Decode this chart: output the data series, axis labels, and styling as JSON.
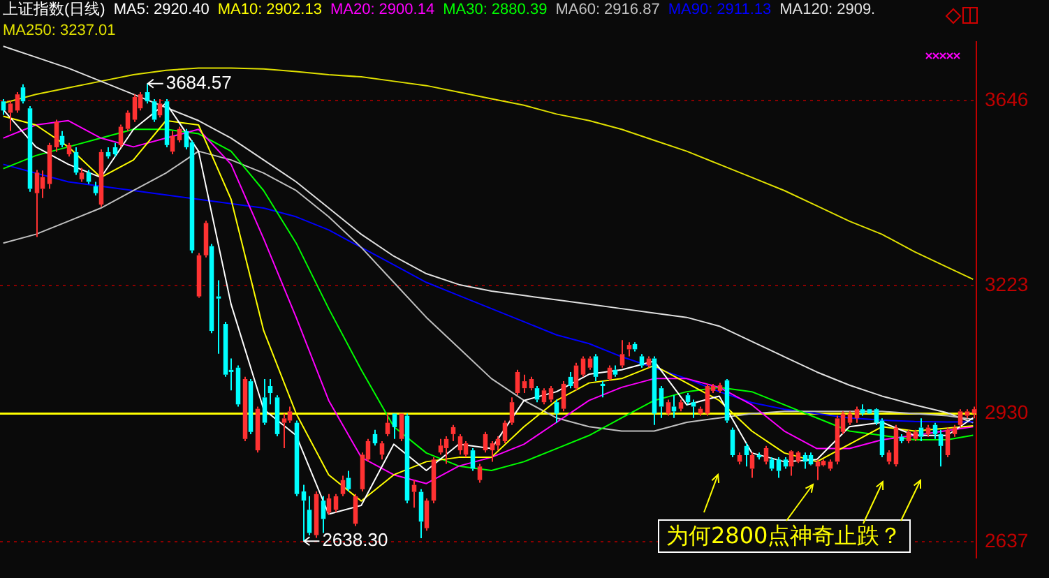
{
  "chart_data": {
    "type": "candlestick",
    "title": "上证指数(日线)",
    "legend": "top",
    "grid": "y",
    "tick_labels": "y",
    "ylim": [
      2600,
      3780
    ],
    "yticks": [
      3646,
      3223,
      2930,
      2637
    ],
    "categories": [
      null,
      null,
      null,
      null,
      null,
      null,
      null,
      null,
      null,
      null,
      null,
      null,
      null,
      null,
      null,
      null,
      null,
      null,
      null,
      null,
      null,
      null,
      null,
      null,
      null,
      null,
      null,
      null,
      null,
      null,
      null,
      null,
      null,
      null,
      null,
      null,
      null,
      null,
      null,
      null,
      null,
      null,
      null,
      null,
      null,
      null,
      null,
      null,
      null,
      null,
      null,
      null,
      null,
      null,
      null,
      null,
      null,
      null,
      null,
      null,
      null,
      null,
      null,
      null,
      null,
      null,
      null,
      null,
      null,
      null,
      null,
      null,
      null,
      null,
      null,
      null,
      null,
      null,
      null,
      null,
      null,
      null,
      null,
      null,
      null,
      null,
      null,
      null,
      null,
      null,
      null,
      null,
      null,
      null,
      null,
      null,
      null,
      null,
      null,
      null,
      null,
      null,
      null,
      null,
      null,
      null,
      null,
      null,
      null,
      null,
      null,
      null,
      null,
      null,
      null,
      null,
      null,
      null,
      null,
      null,
      null,
      null,
      null,
      null,
      null,
      null,
      null,
      null,
      null,
      null,
      null,
      null,
      null,
      null,
      null,
      null,
      null,
      null,
      null,
      null,
      null,
      null,
      null,
      null,
      null,
      null,
      null,
      null,
      null,
      null
    ],
    "ohlc": [
      [
        3644,
        3649,
        3613,
        3623
      ],
      [
        3618,
        3644,
        3576,
        3639
      ],
      [
        3623,
        3665,
        3618,
        3660
      ],
      [
        3676,
        3683,
        3639,
        3644
      ],
      [
        3628,
        3633,
        3437,
        3444
      ],
      [
        3434,
        3487,
        3334,
        3481
      ],
      [
        3444,
        3486,
        3423,
        3471
      ],
      [
        3455,
        3549,
        3444,
        3544
      ],
      [
        3539,
        3602,
        3528,
        3597
      ],
      [
        3565,
        3576,
        3539,
        3544
      ],
      [
        3523,
        3549,
        3518,
        3544
      ],
      [
        3528,
        3539,
        3476,
        3481
      ],
      [
        3466,
        3492,
        3460,
        3481
      ],
      [
        3481,
        3487,
        3455,
        3460
      ],
      [
        3450,
        3460,
        3429,
        3434
      ],
      [
        3408,
        3534,
        3403,
        3528
      ],
      [
        3528,
        3539,
        3513,
        3518
      ],
      [
        3539,
        3549,
        3518,
        3523
      ],
      [
        3544,
        3591,
        3539,
        3586
      ],
      [
        3581,
        3623,
        3576,
        3618
      ],
      [
        3602,
        3660,
        3597,
        3654
      ],
      [
        3628,
        3665,
        3623,
        3660
      ],
      [
        3665,
        3684.57,
        3639,
        3644
      ],
      [
        3644,
        3649,
        3597,
        3602
      ],
      [
        3612,
        3649,
        3607,
        3639
      ],
      [
        3644,
        3649,
        3539,
        3544
      ],
      [
        3529,
        3576,
        3523,
        3565
      ],
      [
        3555,
        3586,
        3550,
        3581
      ],
      [
        3576,
        3581,
        3534,
        3539
      ],
      [
        3550,
        3555,
        3297,
        3303
      ],
      [
        3198,
        3297,
        3195,
        3292
      ],
      [
        3292,
        3371,
        3287,
        3366
      ],
      [
        3313,
        3318,
        3114,
        3119
      ],
      [
        3198,
        3235,
        3067,
        3193
      ],
      [
        3135,
        3140,
        3014,
        3019
      ],
      [
        3030,
        3056,
        2983,
        3025
      ],
      [
        3035,
        3040,
        2946,
        2951
      ],
      [
        2872,
        3014,
        2867,
        3009
      ],
      [
        3004,
        3009,
        2883,
        2888
      ],
      [
        2846,
        2946,
        2841,
        2941
      ],
      [
        2967,
        3009,
        2904,
        2909
      ],
      [
        2993,
        3009,
        2951,
        2977
      ],
      [
        2967,
        2972,
        2878,
        2883
      ],
      [
        2909,
        2930,
        2851,
        2919
      ],
      [
        2914,
        2946,
        2909,
        2935
      ],
      [
        2909,
        2914,
        2741,
        2746
      ],
      [
        2752,
        2767,
        2638.3,
        2731
      ],
      [
        2710,
        2741,
        2652,
        2657
      ],
      [
        2652,
        2752,
        2646,
        2746
      ],
      [
        2731,
        2741,
        2657,
        2689
      ],
      [
        2704,
        2746,
        2699,
        2736
      ],
      [
        2710,
        2746,
        2704,
        2741
      ],
      [
        2746,
        2788,
        2741,
        2778
      ],
      [
        2783,
        2799,
        2752,
        2757
      ],
      [
        2678,
        2746,
        2673,
        2741
      ],
      [
        2757,
        2841,
        2752,
        2836
      ],
      [
        2825,
        2872,
        2820,
        2867
      ],
      [
        2883,
        2893,
        2857,
        2862
      ],
      [
        2836,
        2867,
        2825,
        2862
      ],
      [
        2883,
        2930,
        2878,
        2909
      ],
      [
        2930,
        2930,
        2872,
        2899
      ],
      [
        2872,
        2930,
        2867,
        2930
      ],
      [
        2925,
        2930,
        2725,
        2731
      ],
      [
        2751,
        2778,
        2715,
        2767
      ],
      [
        2751,
        2757,
        2645,
        2683
      ],
      [
        2668,
        2736,
        2662,
        2731
      ],
      [
        2731,
        2830,
        2725,
        2825
      ],
      [
        2841,
        2872,
        2836,
        2857
      ],
      [
        2851,
        2878,
        2815,
        2872
      ],
      [
        2883,
        2904,
        2867,
        2899
      ],
      [
        2846,
        2883,
        2836,
        2878
      ],
      [
        2836,
        2867,
        2830,
        2862
      ],
      [
        2846,
        2851,
        2799,
        2804
      ],
      [
        2778,
        2815,
        2772,
        2809
      ],
      [
        2846,
        2888,
        2841,
        2883
      ],
      [
        2846,
        2867,
        2820,
        2862
      ],
      [
        2857,
        2878,
        2846,
        2872
      ],
      [
        2867,
        2914,
        2862,
        2909
      ],
      [
        2909,
        2967,
        2904,
        2956
      ],
      [
        2977,
        3030,
        2972,
        3025
      ],
      [
        2988,
        3019,
        2977,
        3004
      ],
      [
        2988,
        3014,
        2983,
        3009
      ],
      [
        2988,
        2993,
        2956,
        2962
      ],
      [
        2956,
        2988,
        2951,
        2983
      ],
      [
        2962,
        2993,
        2956,
        2988
      ],
      [
        2956,
        2962,
        2909,
        2930
      ],
      [
        2941,
        3004,
        2935,
        2998
      ],
      [
        3014,
        3025,
        2988,
        2993
      ],
      [
        2988,
        3046,
        2983,
        3040
      ],
      [
        3019,
        3061,
        3014,
        3056
      ],
      [
        3035,
        3061,
        3030,
        3056
      ],
      [
        3061,
        3066,
        3004,
        3014
      ],
      [
        2998,
        3004,
        2967,
        2993
      ],
      [
        3009,
        3040,
        3004,
        3035
      ],
      [
        3030,
        3040,
        3014,
        3019
      ],
      [
        3040,
        3098,
        3035,
        3066
      ],
      [
        3077,
        3093,
        3061,
        3087
      ],
      [
        3089,
        3093,
        3072,
        3077
      ],
      [
        3061,
        3066,
        3035,
        3040
      ],
      [
        3040,
        3061,
        3035,
        3056
      ],
      [
        3056,
        3061,
        2904,
        2930
      ],
      [
        2988,
        2993,
        2920,
        2946
      ],
      [
        2930,
        2962,
        2925,
        2956
      ],
      [
        2946,
        2972,
        2920,
        2935
      ],
      [
        2941,
        2962,
        2935,
        2956
      ],
      [
        2972,
        2977,
        2951,
        2956
      ],
      [
        2956,
        2962,
        2920,
        2946
      ],
      [
        2930,
        2946,
        2925,
        2941
      ],
      [
        2930,
        2998,
        2925,
        2993
      ],
      [
        2982,
        2998,
        2977,
        2993
      ],
      [
        2982,
        3000,
        2977,
        2995
      ],
      [
        3006,
        3009,
        2909,
        2914
      ],
      [
        2893,
        2898,
        2830,
        2835
      ],
      [
        2820,
        2841,
        2814,
        2835
      ],
      [
        2856,
        2862,
        2809,
        2835
      ],
      [
        2804,
        2841,
        2783,
        2835
      ],
      [
        2835,
        2841,
        2825,
        2830
      ],
      [
        2820,
        2856,
        2814,
        2851
      ],
      [
        2825,
        2830,
        2799,
        2804
      ],
      [
        2825,
        2830,
        2783,
        2799
      ],
      [
        2825,
        2830,
        2804,
        2809
      ],
      [
        2809,
        2846,
        2788,
        2844
      ],
      [
        2820,
        2844,
        2817,
        2841
      ],
      [
        2835,
        2841,
        2804,
        2820
      ],
      [
        2835,
        2841,
        2812,
        2814
      ],
      [
        2809,
        2825,
        2778,
        2820
      ],
      [
        2812,
        2825,
        2809,
        2822
      ],
      [
        2804,
        2825,
        2799,
        2820
      ],
      [
        2820,
        2925,
        2814,
        2919
      ],
      [
        2888,
        2935,
        2883,
        2930
      ],
      [
        2909,
        2935,
        2904,
        2930
      ],
      [
        2919,
        2946,
        2909,
        2940
      ],
      [
        2940,
        2951,
        2925,
        2930
      ],
      [
        2940,
        2940,
        2930,
        2930
      ],
      [
        2940,
        2942,
        2904,
        2909
      ],
      [
        2914,
        2919,
        2830,
        2835
      ],
      [
        2820,
        2846,
        2814,
        2841
      ],
      [
        2814,
        2904,
        2809,
        2898
      ],
      [
        2877,
        2883,
        2862,
        2867
      ],
      [
        2867,
        2893,
        2862,
        2888
      ],
      [
        2872,
        2893,
        2867,
        2888
      ],
      [
        2898,
        2919,
        2867,
        2877
      ],
      [
        2883,
        2904,
        2877,
        2898
      ],
      [
        2904,
        2909,
        2872,
        2883
      ],
      [
        2883,
        2893,
        2809,
        2856
      ],
      [
        2835,
        2898,
        2830,
        2893
      ],
      [
        2883,
        2904,
        2877,
        2898
      ],
      [
        2904,
        2940,
        2899,
        2935
      ],
      [
        2925,
        2940,
        2919,
        2935
      ],
      [
        2930,
        2946,
        2919,
        2940
      ]
    ],
    "colors": [
      "#00ffff",
      "#ff3232",
      "#ff3232",
      "#00ffff",
      "#00ffff",
      "#ff3232",
      "#ff3232",
      "#ff3232",
      "#ff3232",
      "#00ffff",
      "#ff3232",
      "#00ffff",
      "#ff3232",
      "#00ffff",
      "#00ffff",
      "#ff3232",
      "#00ffff",
      "#00ffff",
      "#ff3232",
      "#ff3232",
      "#ff3232",
      "#ff3232",
      "#00ffff",
      "#00ffff",
      "#ff3232",
      "#00ffff",
      "#ff3232",
      "#ff3232",
      "#00ffff",
      "#00ffff",
      "#ff3232",
      "#ff3232",
      "#00ffff",
      "#00ffff",
      "#00ffff",
      "#00ffff",
      "#00ffff",
      "#ff3232",
      "#00ffff",
      "#ff3232",
      "#00ffff",
      "#00ffff",
      "#00ffff",
      "#ff3232",
      "#ff3232",
      "#00ffff",
      "#00ffff",
      "#00ffff",
      "#ff3232",
      "#00ffff",
      "#ff3232",
      "#ff3232",
      "#ff3232",
      "#00ffff",
      "#ff3232",
      "#ff3232",
      "#ff3232",
      "#00ffff",
      "#ff3232",
      "#ff3232",
      "#00ffff",
      "#ff3232",
      "#00ffff",
      "#ff3232",
      "#00ffff",
      "#ff3232",
      "#ff3232",
      "#ff3232",
      "#ff3232",
      "#ff3232",
      "#ff3232",
      "#ff3232",
      "#00ffff",
      "#ff3232",
      "#ff3232",
      "#ff3232",
      "#ff3232",
      "#ff3232",
      "#ff3232",
      "#ff3232",
      "#ff3232",
      "#ff3232",
      "#00ffff",
      "#ff3232",
      "#ff3232",
      "#00ffff",
      "#ff3232",
      "#00ffff",
      "#ff3232",
      "#ff3232",
      "#ff3232",
      "#00ffff",
      "#00ffff",
      "#ff3232",
      "#00ffff",
      "#ff3232",
      "#ff3232",
      "#00ffff",
      "#00ffff",
      "#ff3232",
      "#00ffff",
      "#00ffff",
      "#ff3232",
      "#00ffff",
      "#ff3232",
      "#00ffff",
      "#00ffff",
      "#ff3232",
      "#ff3232",
      "#ff3232",
      "#ff3232",
      "#00ffff",
      "#00ffff",
      "#ff3232",
      "#00ffff",
      "#ff3232",
      "#00ffff",
      "#ff3232",
      "#00ffff",
      "#00ffff",
      "#00ffff",
      "#ff3232",
      "#ff3232",
      "#00ffff",
      "#00ffff",
      "#ff3232",
      "#ff3232",
      "#ff3232",
      "#ff3232",
      "#ff3232",
      "#ff3232",
      "#ff3232",
      "#00ffff",
      "#00ffff",
      "#00ffff",
      "#00ffff",
      "#ff3232",
      "#ff3232",
      "#00ffff",
      "#ff3232",
      "#ff3232",
      "#00ffff",
      "#ff3232",
      "#00ffff",
      "#00ffff",
      "#ff3232",
      "#ff3232",
      "#ff3232",
      "#ff3232",
      "#ff3232"
    ],
    "series": [
      {
        "type": "line",
        "name": "MA5: 2920.40",
        "color": "#ffffff",
        "values": [
          3625,
          null,
          null,
          null,
          null,
          3540,
          null,
          null,
          null,
          null,
          3500,
          null,
          null,
          null,
          null,
          3470,
          null,
          null,
          null,
          null,
          3580,
          null,
          null,
          null,
          null,
          3640,
          null,
          null,
          null,
          null,
          3530,
          null,
          null,
          null,
          null,
          3180,
          null,
          null,
          null,
          null,
          2940,
          null,
          null,
          null,
          null,
          2880,
          null,
          null,
          null,
          null,
          2700,
          null,
          null,
          null,
          null,
          2720,
          null,
          null,
          null,
          null,
          2860,
          null,
          null,
          null,
          null,
          2800,
          null,
          null,
          null,
          null,
          2860,
          null,
          null,
          null,
          null,
          2850,
          null,
          null,
          null,
          null,
          2960,
          null,
          null,
          null,
          null,
          2980,
          null,
          null,
          null,
          null,
          3020,
          null,
          null,
          null,
          null,
          3030,
          null,
          null,
          null,
          null,
          3050,
          null,
          null,
          null,
          null,
          2950,
          null,
          null,
          null,
          null,
          2970,
          null,
          null,
          null,
          null,
          2840,
          null,
          null,
          null,
          null,
          2820,
          null,
          null,
          null,
          null,
          2825,
          null,
          null,
          null,
          null,
          2900,
          null,
          null,
          null,
          null,
          2910,
          null,
          null,
          null,
          null,
          2880,
          null,
          null,
          null,
          null,
          2880,
          null,
          null,
          null,
          2920.4
        ]
      },
      {
        "type": "line",
        "name": "MA10: 2902.13",
        "color": "#ffff00",
        "values": [
          3610,
          null,
          null,
          null,
          null,
          3590,
          null,
          null,
          null,
          null,
          3540,
          null,
          null,
          null,
          null,
          3470,
          null,
          null,
          null,
          null,
          3510,
          null,
          null,
          null,
          null,
          3600,
          null,
          null,
          null,
          null,
          3590,
          null,
          null,
          null,
          null,
          3420,
          null,
          null,
          null,
          null,
          3120,
          null,
          null,
          null,
          null,
          2930,
          null,
          null,
          null,
          null,
          2790,
          null,
          null,
          null,
          null,
          2730,
          null,
          null,
          null,
          null,
          2790,
          null,
          null,
          null,
          null,
          2820,
          null,
          null,
          null,
          null,
          2830,
          null,
          null,
          null,
          null,
          2830,
          null,
          null,
          null,
          null,
          2900,
          null,
          null,
          null,
          null,
          2960,
          null,
          null,
          null,
          null,
          3000,
          null,
          null,
          null,
          null,
          3010,
          null,
          null,
          null,
          null,
          3040,
          null,
          null,
          null,
          null,
          3000,
          null,
          null,
          null,
          null,
          2960,
          null,
          null,
          null,
          null,
          2890,
          null,
          null,
          null,
          null,
          2840,
          null,
          null,
          null,
          null,
          2820,
          null,
          null,
          null,
          null,
          2860,
          null,
          null,
          null,
          null,
          2900,
          null,
          null,
          null,
          null,
          2890,
          null,
          null,
          null,
          null,
          null,
          null,
          null,
          null,
          2902.13
        ]
      },
      {
        "type": "line",
        "name": "MA20: 2900.14",
        "color": "#ff00ff",
        "values": [
          3560,
          null,
          null,
          null,
          null,
          3590,
          null,
          null,
          null,
          null,
          3600,
          null,
          null,
          null,
          null,
          3560,
          null,
          null,
          null,
          null,
          3540,
          null,
          null,
          null,
          null,
          3560,
          null,
          null,
          null,
          null,
          3580,
          null,
          null,
          null,
          null,
          3500,
          null,
          null,
          null,
          null,
          3330,
          null,
          null,
          null,
          null,
          3150,
          null,
          null,
          null,
          null,
          2960,
          null,
          null,
          null,
          null,
          2830,
          null,
          null,
          null,
          null,
          2790,
          null,
          null,
          null,
          null,
          2770,
          null,
          null,
          null,
          null,
          2810,
          null,
          null,
          null,
          null,
          2830,
          null,
          null,
          null,
          null,
          2860,
          null,
          null,
          null,
          null,
          2910,
          null,
          null,
          null,
          null,
          2960,
          null,
          null,
          null,
          null,
          2990,
          null,
          null,
          null,
          null,
          3010,
          null,
          null,
          null,
          null,
          3010,
          null,
          null,
          null,
          null,
          2990,
          null,
          null,
          null,
          null,
          2950,
          null,
          null,
          null,
          null,
          2890,
          null,
          null,
          null,
          null,
          2850,
          null,
          null,
          null,
          null,
          2850,
          null,
          null,
          null,
          null,
          2870,
          null,
          null,
          null,
          null,
          2880,
          null,
          null,
          null,
          null,
          null,
          null,
          null,
          null,
          2900.14
        ]
      },
      {
        "type": "line",
        "name": "MA30: 2880.39",
        "color": "#00ff00",
        "values": [
          3490,
          null,
          null,
          null,
          null,
          3520,
          null,
          null,
          null,
          null,
          3540,
          null,
          null,
          null,
          null,
          3560,
          null,
          null,
          null,
          null,
          3580,
          null,
          null,
          null,
          null,
          3580,
          null,
          null,
          null,
          null,
          3570,
          null,
          null,
          null,
          null,
          3530,
          null,
          null,
          null,
          null,
          3440,
          null,
          null,
          null,
          null,
          3320,
          null,
          null,
          null,
          null,
          3170,
          null,
          null,
          null,
          null,
          3030,
          null,
          null,
          null,
          null,
          2900,
          null,
          null,
          null,
          null,
          2840,
          null,
          null,
          null,
          null,
          2810,
          null,
          null,
          null,
          null,
          2800,
          null,
          null,
          null,
          null,
          2820,
          null,
          null,
          null,
          null,
          2850,
          null,
          null,
          null,
          null,
          2880,
          null,
          null,
          null,
          null,
          2920,
          null,
          null,
          null,
          null,
          2960,
          null,
          null,
          null,
          null,
          2980,
          null,
          null,
          null,
          null,
          2990,
          null,
          null,
          null,
          null,
          2980,
          null,
          null,
          null,
          null,
          2950,
          null,
          null,
          null,
          null,
          2920,
          null,
          null,
          null,
          null,
          2890,
          null,
          null,
          null,
          null,
          2880,
          null,
          null,
          null,
          null,
          2870,
          null,
          null,
          null,
          null,
          2870,
          null,
          null,
          null,
          2880.39
        ]
      },
      {
        "type": "line",
        "name": "MA60: 2916.87",
        "color": "#c0c0c0",
        "values": [
          3320,
          null,
          null,
          null,
          null,
          3340,
          null,
          null,
          null,
          null,
          3370,
          null,
          null,
          null,
          null,
          3400,
          null,
          null,
          null,
          null,
          3440,
          null,
          null,
          null,
          null,
          3480,
          null,
          null,
          null,
          null,
          3530,
          null,
          null,
          null,
          null,
          3510,
          null,
          null,
          null,
          null,
          3480,
          null,
          null,
          null,
          null,
          3440,
          null,
          null,
          null,
          null,
          3380,
          null,
          null,
          null,
          null,
          3310,
          null,
          null,
          null,
          null,
          3230,
          null,
          null,
          null,
          null,
          3150,
          null,
          null,
          null,
          null,
          3080,
          null,
          null,
          null,
          null,
          3010,
          null,
          null,
          null,
          null,
          2960,
          null,
          null,
          null,
          null,
          2920,
          null,
          null,
          null,
          null,
          2900,
          null,
          null,
          null,
          null,
          2890,
          null,
          null,
          null,
          null,
          2890,
          null,
          null,
          null,
          null,
          2910,
          null,
          null,
          null,
          null,
          2920,
          null,
          null,
          null,
          null,
          2930,
          null,
          null,
          null,
          null,
          2935,
          null,
          null,
          null,
          null,
          2935,
          null,
          null,
          null,
          null,
          2935,
          null,
          null,
          null,
          null,
          2935,
          null,
          null,
          null,
          null,
          2930,
          null,
          null,
          null,
          null,
          2925,
          null,
          null,
          null,
          2916.87
        ]
      },
      {
        "type": "line",
        "name": "MA90: 2911.13",
        "color": "#0000ff",
        "values": [
          3500,
          null,
          null,
          null,
          null,
          3480,
          null,
          null,
          null,
          null,
          3460,
          null,
          null,
          null,
          null,
          3450,
          null,
          null,
          null,
          null,
          3440,
          null,
          null,
          null,
          null,
          3430,
          null,
          null,
          null,
          null,
          3420,
          null,
          null,
          null,
          null,
          3410,
          null,
          null,
          null,
          null,
          3400,
          null,
          null,
          null,
          null,
          3380,
          null,
          null,
          null,
          null,
          3350,
          null,
          null,
          null,
          null,
          3310,
          null,
          null,
          null,
          null,
          3270,
          null,
          null,
          null,
          null,
          3230,
          null,
          null,
          null,
          null,
          3200,
          null,
          null,
          null,
          null,
          3170,
          null,
          null,
          null,
          null,
          3140,
          null,
          null,
          null,
          null,
          3110,
          null,
          null,
          null,
          null,
          3090,
          null,
          null,
          null,
          null,
          3060,
          null,
          null,
          null,
          null,
          null,
          null,
          null,
          null,
          null,
          3010,
          null,
          null,
          null,
          null,
          2980,
          null,
          null,
          null,
          null,
          2955,
          null,
          null,
          null,
          null,
          2940,
          null,
          null,
          null,
          null,
          2930,
          null,
          null,
          null,
          null,
          2920,
          null,
          null,
          null,
          null,
          2915,
          null,
          null,
          null,
          null,
          2912,
          null,
          null,
          null,
          null,
          2911,
          null,
          null,
          null,
          2911.13
        ]
      },
      {
        "type": "line",
        "name": "MA120: 2909.",
        "color": "#e0e0e0",
        "values": [
          3770,
          null,
          null,
          null,
          null,
          3745,
          null,
          null,
          null,
          null,
          3720,
          null,
          null,
          null,
          null,
          3690,
          null,
          null,
          null,
          null,
          3660,
          null,
          null,
          null,
          null,
          3630,
          null,
          null,
          null,
          null,
          3600,
          null,
          null,
          null,
          null,
          3560,
          null,
          null,
          null,
          null,
          3510,
          null,
          null,
          null,
          null,
          3460,
          null,
          null,
          null,
          null,
          3400,
          null,
          null,
          null,
          null,
          3340,
          null,
          null,
          null,
          null,
          3290,
          null,
          null,
          null,
          null,
          3250,
          null,
          null,
          null,
          null,
          3225,
          null,
          null,
          null,
          null,
          3210,
          null,
          null,
          null,
          null,
          3200,
          null,
          null,
          null,
          null,
          3190,
          null,
          null,
          null,
          null,
          3180,
          null,
          null,
          null,
          null,
          3170,
          null,
          null,
          null,
          null,
          3160,
          null,
          null,
          null,
          null,
          3150,
          null,
          null,
          null,
          null,
          3130,
          null,
          null,
          null,
          null,
          3095,
          null,
          null,
          null,
          null,
          3060,
          null,
          null,
          null,
          null,
          3025,
          null,
          null,
          null,
          null,
          2995,
          null,
          null,
          null,
          null,
          2970,
          null,
          null,
          null,
          null,
          2950,
          null,
          null,
          null,
          null,
          2932,
          null,
          null,
          null,
          2909
        ]
      },
      {
        "type": "line",
        "name": "MA250: 3237.01",
        "color": "#e0e000",
        "values": [
          3640,
          null,
          null,
          null,
          null,
          3660,
          null,
          null,
          null,
          null,
          3675,
          null,
          null,
          null,
          null,
          3690,
          null,
          null,
          null,
          null,
          3705,
          null,
          null,
          null,
          null,
          3715,
          null,
          null,
          null,
          null,
          3720,
          null,
          null,
          null,
          null,
          3720,
          null,
          null,
          null,
          null,
          3718,
          null,
          null,
          null,
          null,
          3712,
          null,
          null,
          null,
          null,
          3705,
          null,
          null,
          null,
          null,
          3700,
          null,
          null,
          null,
          null,
          3690,
          null,
          null,
          null,
          null,
          3680,
          null,
          null,
          null,
          null,
          3665,
          null,
          null,
          null,
          null,
          3650,
          null,
          null,
          null,
          null,
          3635,
          null,
          null,
          null,
          null,
          3615,
          null,
          null,
          null,
          null,
          3600,
          null,
          null,
          null,
          null,
          3580,
          null,
          null,
          null,
          null,
          3555,
          null,
          null,
          null,
          null,
          3530,
          null,
          null,
          null,
          null,
          3500,
          null,
          null,
          null,
          null,
          3470,
          null,
          null,
          null,
          null,
          3440,
          null,
          null,
          null,
          null,
          3405,
          null,
          null,
          null,
          null,
          3370,
          null,
          null,
          null,
          null,
          3340,
          null,
          null,
          null,
          null,
          3300,
          null,
          null,
          null,
          null,
          3265,
          null,
          null,
          null,
          3237.01
        ]
      }
    ],
    "ref_lines": [
      {
        "axis": "y",
        "value": 2930,
        "color": "#ffff00"
      }
    ],
    "annotations": [
      "3684.57",
      "2638.30",
      "为何2800点神奇止跌？"
    ]
  }
}
